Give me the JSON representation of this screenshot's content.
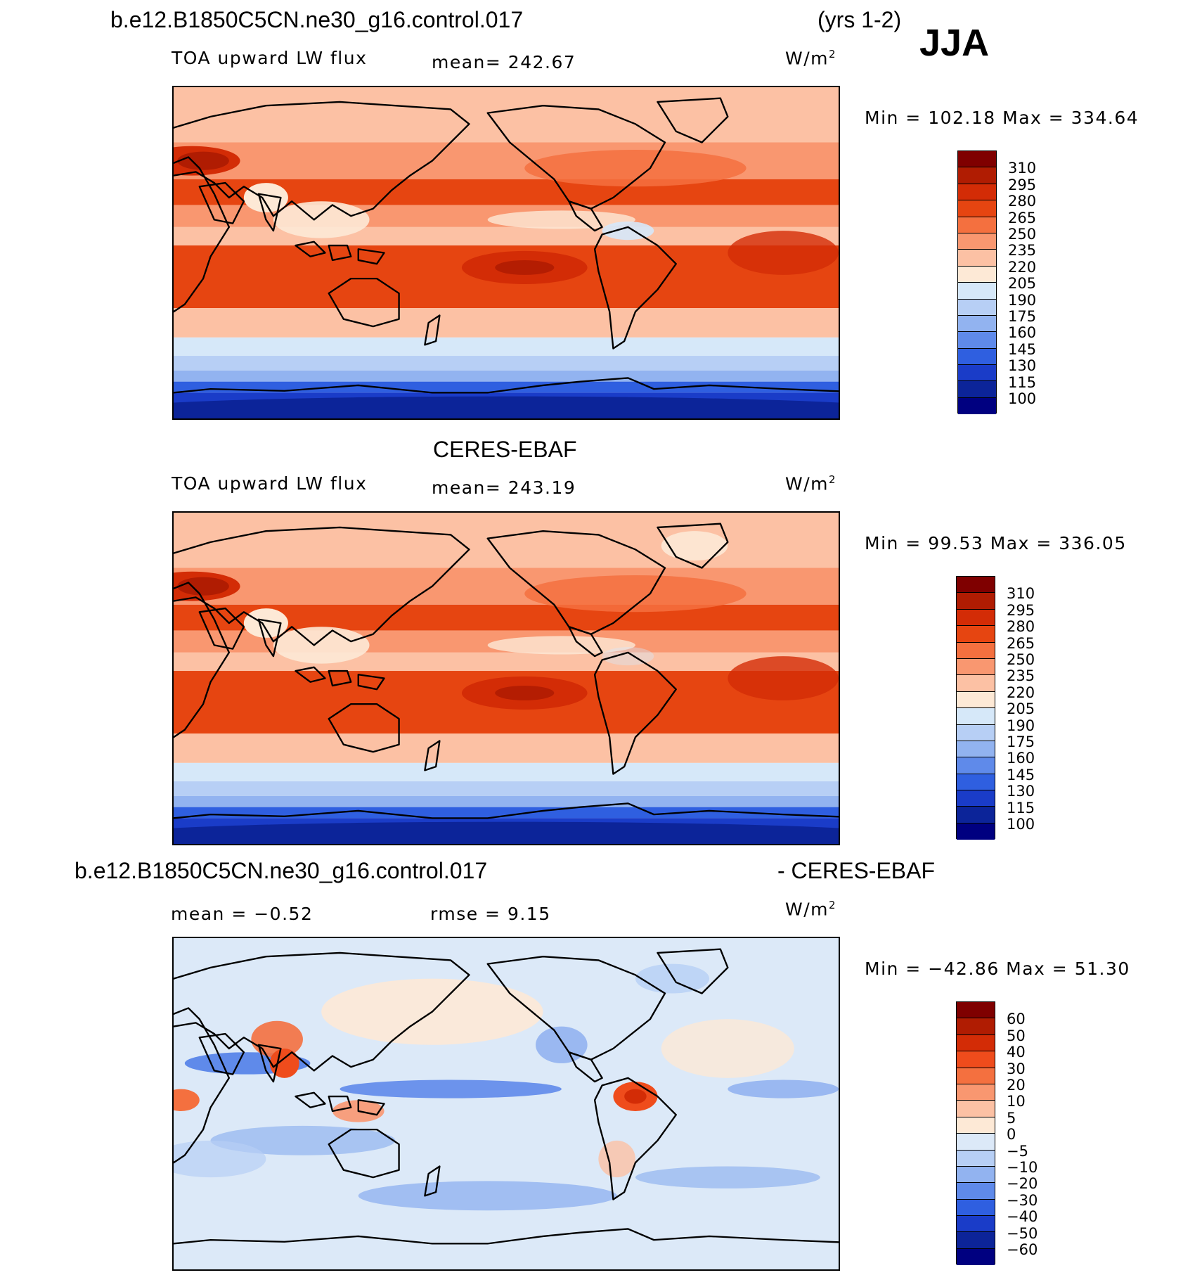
{
  "header": {
    "case_title": "b.e12.B1850C5CN.ne30_g16.control.017",
    "years": "(yrs 1-2)",
    "season": "JJA"
  },
  "panels": [
    {
      "title": "",
      "left_label": "TOA upward LW flux",
      "center_label": "mean=  242.67",
      "units_base": "W/m",
      "units_exp": "2",
      "minmax": "Min  =  102.18  Max  =  334.64",
      "palette": "seq",
      "colorbar_levels": [
        "310",
        "295",
        "280",
        "265",
        "250",
        "235",
        "220",
        "205",
        "190",
        "175",
        "160",
        "145",
        "130",
        "115",
        "100"
      ]
    },
    {
      "title": "CERES-EBAF",
      "left_label": "TOA upward LW flux",
      "center_label": "mean=  243.19",
      "units_base": "W/m",
      "units_exp": "2",
      "minmax": "Min  =    99.53  Max  =  336.05",
      "palette": "seq",
      "colorbar_levels": [
        "310",
        "295",
        "280",
        "265",
        "250",
        "235",
        "220",
        "205",
        "190",
        "175",
        "160",
        "145",
        "130",
        "115",
        "100"
      ]
    },
    {
      "title_left": "b.e12.B1850C5CN.ne30_g16.control.017",
      "title_right": "- CERES-EBAF",
      "left_label": "mean  =    −0.52",
      "center_label": "rmse  =     9.15",
      "units_base": "W/m",
      "units_exp": "2",
      "minmax": "Min  =  −42.86  Max  =    51.30",
      "palette": "div",
      "colorbar_levels": [
        "60",
        "50",
        "40",
        "30",
        "20",
        "10",
        "5",
        "0",
        "−5",
        "−10",
        "−20",
        "−30",
        "−40",
        "−50",
        "−60"
      ]
    }
  ],
  "colors": {
    "seq": [
      "#7f0000",
      "#b01c02",
      "#d32c06",
      "#e64511",
      "#f4703f",
      "#f99770",
      "#fcc1a4",
      "#fde9d6",
      "#d6e8f9",
      "#b7cff5",
      "#92b3f0",
      "#5f8aea",
      "#2f5fe0",
      "#1a3cc8",
      "#0c2499",
      "#000080"
    ],
    "div": [
      "#7f0000",
      "#b01c02",
      "#d32c06",
      "#ef4c1c",
      "#f4703f",
      "#f99770",
      "#fcc1a4",
      "#fde9d6",
      "#dce9f8",
      "#b7cff5",
      "#92b3f0",
      "#5f8aea",
      "#2f5fe0",
      "#1a3cc8",
      "#0c2499",
      "#000080"
    ],
    "coast": "#000000"
  }
}
